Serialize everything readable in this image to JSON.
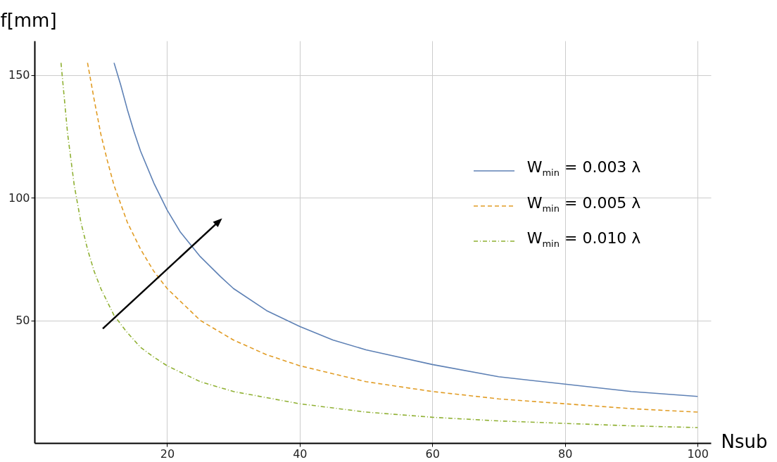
{
  "chart_data": {
    "type": "line",
    "xlabel": "Nsub",
    "ylabel": "f[mm]",
    "xlim": [
      0,
      102
    ],
    "ylim": [
      0,
      164
    ],
    "xticks": [
      20,
      40,
      60,
      80,
      100
    ],
    "yticks": [
      50,
      100,
      150
    ],
    "grid": true,
    "legend": "right",
    "series": [
      {
        "name": "W$_{min}$ = 0.003 λ",
        "color": "#5e81b5",
        "line_style": "solid",
        "x": [
          12,
          13,
          14,
          15,
          16,
          18,
          20,
          22,
          25,
          28,
          30,
          35,
          40,
          45,
          50,
          60,
          70,
          80,
          90,
          100
        ],
        "values": [
          155,
          146,
          136,
          127,
          119,
          106,
          95,
          86,
          76,
          68,
          63,
          54,
          47.5,
          42,
          38,
          32,
          27,
          24,
          21,
          19
        ]
      },
      {
        "name": "W$_{min}$ = 0.005 λ",
        "color": "#e19c24",
        "line_style": "dashed",
        "x": [
          8,
          9,
          10,
          11,
          12,
          14,
          16,
          18,
          20,
          25,
          30,
          35,
          40,
          50,
          60,
          70,
          80,
          90,
          100
        ],
        "values": [
          155,
          140,
          126,
          115,
          105,
          90,
          79,
          70,
          63,
          50,
          42,
          36,
          31.5,
          25,
          21,
          18,
          16,
          14,
          12.6
        ]
      },
      {
        "name": "W$_{min}$ = 0.010 λ",
        "color": "#8fb032",
        "line_style": "dotted",
        "x": [
          4,
          5,
          6,
          7,
          8,
          9,
          10,
          12,
          14,
          16,
          18,
          20,
          25,
          30,
          40,
          50,
          60,
          70,
          80,
          90,
          100
        ],
        "values": [
          155,
          126,
          105,
          90,
          79,
          70,
          63,
          52,
          45,
          39,
          35,
          31.5,
          25,
          21,
          16,
          12.6,
          10.5,
          9,
          8,
          7,
          6.3
        ]
      }
    ]
  }
}
